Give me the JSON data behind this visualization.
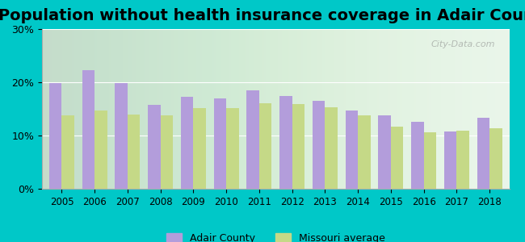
{
  "title": "Population without health insurance coverage in Adair County",
  "years": [
    2005,
    2006,
    2007,
    2008,
    2009,
    2010,
    2011,
    2012,
    2013,
    2014,
    2015,
    2016,
    2017,
    2018
  ],
  "adair_county": [
    19.9,
    22.3,
    19.8,
    15.8,
    17.3,
    17.0,
    18.5,
    17.5,
    16.5,
    14.7,
    13.8,
    12.6,
    10.7,
    13.4
  ],
  "missouri_avg": [
    13.8,
    14.7,
    14.0,
    13.8,
    15.2,
    15.2,
    16.0,
    15.9,
    15.3,
    13.8,
    11.6,
    10.6,
    10.9,
    11.4
  ],
  "adair_color": "#b39ddb",
  "missouri_color": "#c5d987",
  "bg_outer": "#00c8c8",
  "bg_plot": "#e8f5e9",
  "ylim": [
    0,
    30
  ],
  "yticks": [
    0,
    10,
    20,
    30
  ],
  "ytick_labels": [
    "0%",
    "10%",
    "20%",
    "30%"
  ],
  "title_fontsize": 14,
  "legend_adair": "Adair County",
  "legend_missouri": "Missouri average",
  "watermark": "City-Data.com"
}
